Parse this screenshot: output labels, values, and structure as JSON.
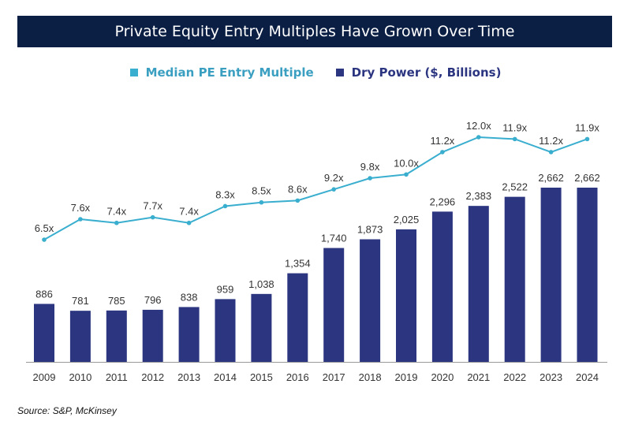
{
  "colors": {
    "bar": "#2b3580",
    "line": "#3aaecf",
    "line_text": "#3a9fc0",
    "title_bg": "#0b1f44",
    "axis": "#999999",
    "text": "#333333"
  },
  "chart_data": {
    "type": "bar+line",
    "title": "Private Equity Entry Multiples Have Grown Over Time",
    "categories": [
      "2009",
      "2010",
      "2011",
      "2012",
      "2013",
      "2014",
      "2015",
      "2016",
      "2017",
      "2018",
      "2019",
      "2020",
      "2021",
      "2022",
      "2023",
      "2024"
    ],
    "series": [
      {
        "name": "Dry Power ($, Billions)",
        "type": "bar",
        "values": [
          886,
          781,
          785,
          796,
          838,
          959,
          1038,
          1354,
          1740,
          1873,
          2025,
          2296,
          2383,
          2522,
          2662,
          2662
        ],
        "labels": [
          "886",
          "781",
          "785",
          "796",
          "838",
          "959",
          "1,038",
          "1,354",
          "1,740",
          "1,873",
          "2,025",
          "2,296",
          "2,383",
          "2,522",
          "2,662",
          "2,662"
        ]
      },
      {
        "name": "Median PE Entry Multiple",
        "type": "line",
        "values": [
          6.5,
          7.6,
          7.4,
          7.7,
          7.4,
          8.3,
          8.5,
          8.6,
          9.2,
          9.8,
          10.0,
          11.2,
          12.0,
          11.9,
          11.2,
          11.9
        ],
        "labels": [
          "6.5x",
          "7.6x",
          "7.4x",
          "7.7x",
          "7.4x",
          "8.3x",
          "8.5x",
          "8.6x",
          "9.2x",
          "9.8x",
          "10.0x",
          "11.2x",
          "12.0x",
          "11.9x",
          "11.2x",
          "11.9x"
        ]
      }
    ],
    "bar_ylim": [
      0,
      2662
    ],
    "line_ylim": [
      6.5,
      12.0
    ],
    "legend_position": "top-center"
  },
  "source": "Source: S&P, McKinsey"
}
